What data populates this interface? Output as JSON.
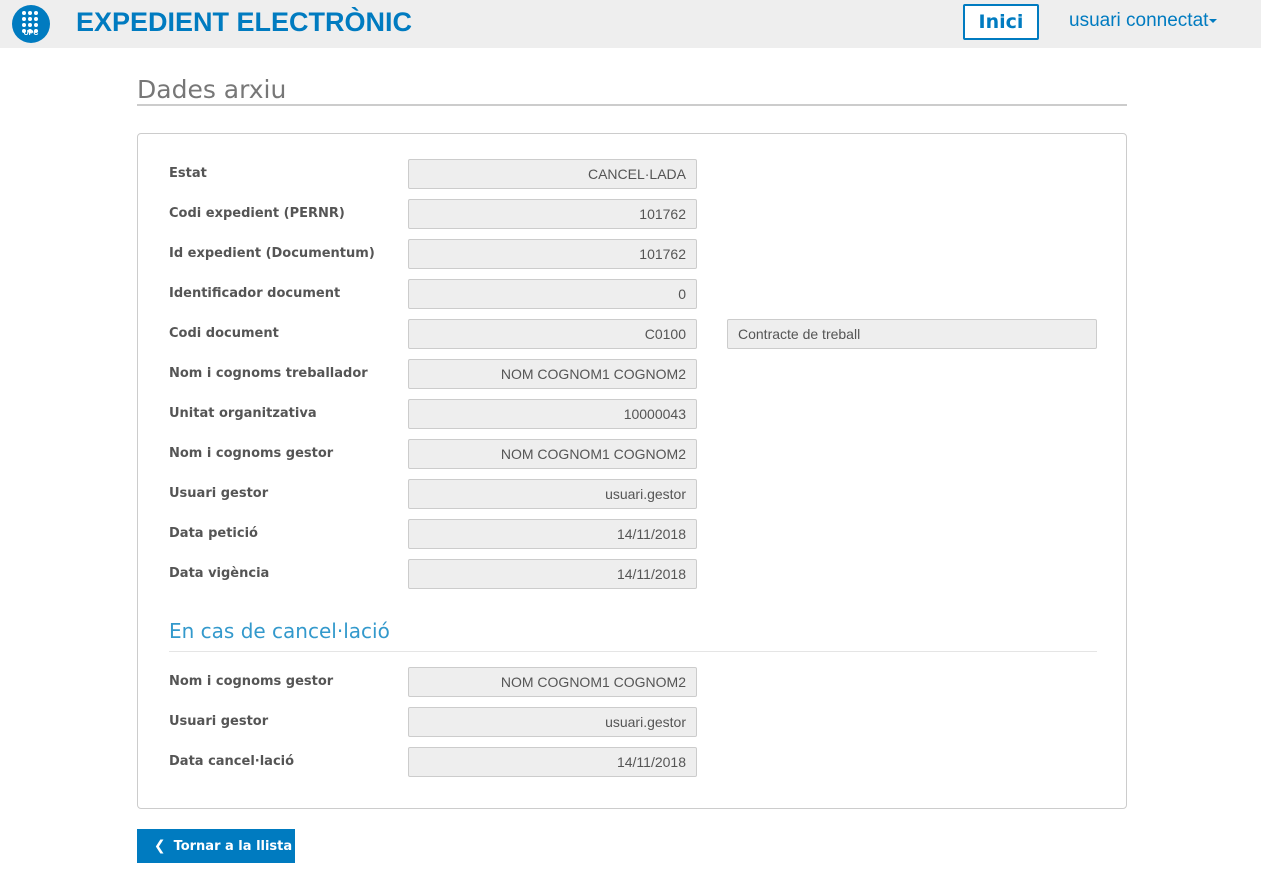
{
  "header": {
    "logo_text": "UPC",
    "title": "EXPEDIENT ELECTRÒNIC",
    "home_label": "Inici",
    "user_label": "usuari connectat"
  },
  "page_title": "Dades arxiu",
  "fields": [
    {
      "label": "Estat",
      "value": "CANCEL·LADA"
    },
    {
      "label": "Codi expedient (PERNR)",
      "value": "101762"
    },
    {
      "label": "Id expedient (Documentum)",
      "value": "101762"
    },
    {
      "label": "Identificador document",
      "value": "0"
    },
    {
      "label": "Codi document",
      "value": "C0100",
      "extra": "Contracte de treball"
    },
    {
      "label": "Nom i cognoms treballador",
      "value": "NOM COGNOM1 COGNOM2"
    },
    {
      "label": "Unitat organitzativa",
      "value": "10000043"
    },
    {
      "label": "Nom i cognoms gestor",
      "value": "NOM COGNOM1 COGNOM2"
    },
    {
      "label": "Usuari gestor",
      "value": "usuari.gestor"
    },
    {
      "label": "Data petició",
      "value": "14/11/2018"
    },
    {
      "label": "Data vigència",
      "value": "14/11/2018"
    }
  ],
  "cancel_section": {
    "title": "En cas de cancel·lació",
    "fields": [
      {
        "label": "Nom i cognoms gestor",
        "value": "NOM COGNOM1 COGNOM2"
      },
      {
        "label": "Usuari gestor",
        "value": "usuari.gestor"
      },
      {
        "label": "Data cancel·lació",
        "value": "14/11/2018"
      }
    ]
  },
  "back_button": {
    "label": "Tornar a la llista",
    "icon": "chevron-left-icon"
  },
  "colors": {
    "brand": "#007bc0",
    "section": "#3399cc"
  }
}
